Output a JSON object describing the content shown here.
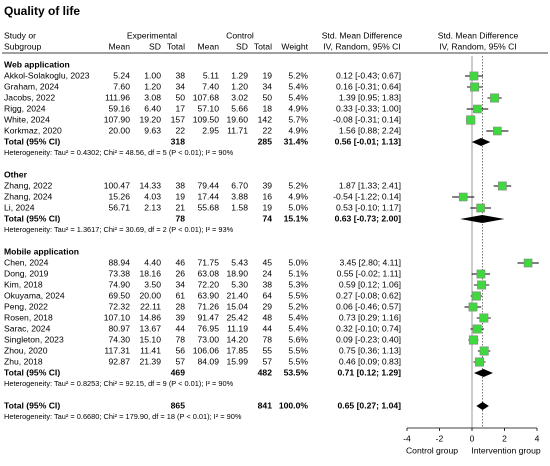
{
  "chart_data": {
    "type": "forest",
    "title": "Quality of life",
    "header": {
      "study": [
        "Study or",
        "Subgroup"
      ],
      "experimental": "Experimental",
      "control": "Control",
      "columns": [
        "Mean",
        "SD",
        "Total",
        "Mean",
        "SD",
        "Total"
      ],
      "weight": "Weight",
      "smd": [
        "Std. Mean Difference",
        "IV, Random, 95% CI"
      ],
      "plot": [
        "Std. Mean Difference",
        "IV, Random, 95% CI"
      ]
    },
    "marker_color": "#3fd83f",
    "groups": [
      {
        "name": "Web application",
        "studies": [
          {
            "name": "Akkol-Solakoglu, 2023",
            "experimental": [
              "5.24",
              "1.00",
              "38"
            ],
            "control": [
              "5.11",
              "1.29",
              "19"
            ],
            "weight": 5.2,
            "weight_label": "5.2%",
            "smd": 0.12,
            "lower": -0.43,
            "upper": 0.67,
            "ci_label": "0.12 [-0.43; 0.67]"
          },
          {
            "name": "Graham, 2024",
            "experimental": [
              "7.60",
              "1.20",
              "34"
            ],
            "control": [
              "7.40",
              "1.20",
              "34"
            ],
            "weight": 5.4,
            "weight_label": "5.4%",
            "smd": 0.16,
            "lower": -0.31,
            "upper": 0.64,
            "ci_label": "0.16 [-0.31; 0.64]"
          },
          {
            "name": "Jacobs, 2022",
            "experimental": [
              "111.96",
              "3.08",
              "50"
            ],
            "control": [
              "107.68",
              "3.02",
              "50"
            ],
            "weight": 5.4,
            "weight_label": "5.4%",
            "smd": 1.39,
            "lower": 0.95,
            "upper": 1.83,
            "ci_label": "1.39 [0.95; 1.83]"
          },
          {
            "name": "Rigg, 2024",
            "experimental": [
              "59.16",
              "6.40",
              "17"
            ],
            "control": [
              "57.10",
              "5.66",
              "18"
            ],
            "weight": 4.9,
            "weight_label": "4.9%",
            "smd": 0.33,
            "lower": -0.33,
            "upper": 1.0,
            "ci_label": "0.33 [-0.33; 1.00]"
          },
          {
            "name": "White, 2024",
            "experimental": [
              "107.90",
              "19.20",
              "157"
            ],
            "control": [
              "109.50",
              "19.60",
              "142"
            ],
            "weight": 5.7,
            "weight_label": "5.7%",
            "smd": -0.08,
            "lower": -0.31,
            "upper": 0.14,
            "ci_label": "-0.08 [-0.31; 0.14]"
          },
          {
            "name": "Korkmaz, 2020",
            "experimental": [
              "20.00",
              "9.63",
              "22"
            ],
            "control": [
              "2.95",
              "11.71",
              "22"
            ],
            "weight": 4.9,
            "weight_label": "4.9%",
            "smd": 1.56,
            "lower": 0.88,
            "upper": 2.24,
            "ci_label": "1.56 [0.88; 2.24]"
          }
        ],
        "total": {
          "label": "Total (95% CI)",
          "experimental": "318",
          "control": "285",
          "weight_label": "31.4%",
          "smd": 0.56,
          "lower": -0.01,
          "upper": 1.13,
          "ci_label": "0.56 [-0.01; 1.13]"
        },
        "heterogeneity": "Heterogeneity: Tau² = 0.4302; Chi² = 48.56, df = 5 (P < 0.01); I² = 90%"
      },
      {
        "name": "Other",
        "studies": [
          {
            "name": "Zhang, 2022",
            "experimental": [
              "100.47",
              "14.33",
              "38"
            ],
            "control": [
              "79.44",
              "6.70",
              "39"
            ],
            "weight": 5.2,
            "weight_label": "5.2%",
            "smd": 1.87,
            "lower": 1.33,
            "upper": 2.41,
            "ci_label": "1.87 [1.33; 2.41]"
          },
          {
            "name": "Zhang, 2024",
            "experimental": [
              "15.26",
              "4.03",
              "19"
            ],
            "control": [
              "17.44",
              "3.88",
              "16"
            ],
            "weight": 4.9,
            "weight_label": "4.9%",
            "smd": -0.54,
            "lower": -1.22,
            "upper": 0.14,
            "ci_label": "-0.54 [-1.22; 0.14]"
          },
          {
            "name": "Li, 2024",
            "experimental": [
              "56.71",
              "2.13",
              "21"
            ],
            "control": [
              "55.68",
              "1.58",
              "19"
            ],
            "weight": 5.0,
            "weight_label": "5.0%",
            "smd": 0.53,
            "lower": -0.1,
            "upper": 1.17,
            "ci_label": "0.53 [-0.10; 1.17]"
          }
        ],
        "total": {
          "label": "Total (95% CI)",
          "experimental": "78",
          "control": "74",
          "weight_label": "15.1%",
          "smd": 0.63,
          "lower": -0.73,
          "upper": 2.0,
          "ci_label": "0.63 [-0.73; 2.00]"
        },
        "heterogeneity": "Heterogeneity: Tau² = 1.3617; Chi² = 30.69, df = 2 (P < 0.01); I² = 93%"
      },
      {
        "name": "Mobile application",
        "studies": [
          {
            "name": "Chen, 2024",
            "experimental": [
              "88.94",
              "4.40",
              "46"
            ],
            "control": [
              "71.75",
              "5.43",
              "45"
            ],
            "weight": 5.0,
            "weight_label": "5.0%",
            "smd": 3.45,
            "lower": 2.8,
            "upper": 4.11,
            "ci_label": "3.45 [2.80; 4.11]"
          },
          {
            "name": "Dong, 2019",
            "experimental": [
              "73.38",
              "18.16",
              "26"
            ],
            "control": [
              "63.08",
              "18.90",
              "24"
            ],
            "weight": 5.1,
            "weight_label": "5.1%",
            "smd": 0.55,
            "lower": -0.02,
            "upper": 1.11,
            "ci_label": "0.55 [-0.02; 1.11]"
          },
          {
            "name": "Kim, 2018",
            "experimental": [
              "74.90",
              "3.50",
              "34"
            ],
            "control": [
              "72.20",
              "5.30",
              "38"
            ],
            "weight": 5.3,
            "weight_label": "5.3%",
            "smd": 0.59,
            "lower": 0.12,
            "upper": 1.06,
            "ci_label": "0.59 [0.12; 1.06]"
          },
          {
            "name": "Okuyama, 2024",
            "experimental": [
              "69.50",
              "20.00",
              "61"
            ],
            "control": [
              "63.90",
              "21.40",
              "64"
            ],
            "weight": 5.5,
            "weight_label": "5.5%",
            "smd": 0.27,
            "lower": -0.08,
            "upper": 0.62,
            "ci_label": "0.27 [-0.08; 0.62]"
          },
          {
            "name": "Peng, 2022",
            "experimental": [
              "72.32",
              "22.11",
              "28"
            ],
            "control": [
              "71.26",
              "15.04",
              "29"
            ],
            "weight": 5.2,
            "weight_label": "5.2%",
            "smd": 0.06,
            "lower": -0.46,
            "upper": 0.57,
            "ci_label": "0.06 [-0.46; 0.57]"
          },
          {
            "name": "Rosen, 2018",
            "experimental": [
              "107.10",
              "14.86",
              "39"
            ],
            "control": [
              "91.47",
              "25.42",
              "48"
            ],
            "weight": 5.4,
            "weight_label": "5.4%",
            "smd": 0.73,
            "lower": 0.29,
            "upper": 1.16,
            "ci_label": "0.73 [0.29; 1.16]"
          },
          {
            "name": "Sarac, 2024",
            "experimental": [
              "80.97",
              "13.67",
              "44"
            ],
            "control": [
              "76.95",
              "11.19",
              "44"
            ],
            "weight": 5.4,
            "weight_label": "5.4%",
            "smd": 0.32,
            "lower": -0.1,
            "upper": 0.74,
            "ci_label": "0.32 [-0.10; 0.74]"
          },
          {
            "name": "Singleton, 2023",
            "experimental": [
              "74.30",
              "15.10",
              "78"
            ],
            "control": [
              "73.00",
              "14.20",
              "78"
            ],
            "weight": 5.6,
            "weight_label": "5.6%",
            "smd": 0.09,
            "lower": -0.23,
            "upper": 0.4,
            "ci_label": "0.09 [-0.23; 0.40]"
          },
          {
            "name": "Zhou, 2020",
            "experimental": [
              "117.31",
              "11.41",
              "56"
            ],
            "control": [
              "106.06",
              "17.85",
              "55"
            ],
            "weight": 5.5,
            "weight_label": "5.5%",
            "smd": 0.75,
            "lower": 0.36,
            "upper": 1.13,
            "ci_label": "0.75 [0.36; 1.13]"
          },
          {
            "name": "Zhu, 2018",
            "experimental": [
              "92.87",
              "21.39",
              "57"
            ],
            "control": [
              "84.09",
              "15.99",
              "57"
            ],
            "weight": 5.5,
            "weight_label": "5.5%",
            "smd": 0.46,
            "lower": 0.09,
            "upper": 0.83,
            "ci_label": "0.46 [0.09; 0.83]"
          }
        ],
        "total": {
          "label": "Total (95% CI)",
          "experimental": "469",
          "control": "482",
          "weight_label": "53.5%",
          "smd": 0.71,
          "lower": 0.12,
          "upper": 1.29,
          "ci_label": "0.71 [0.12; 1.29]"
        },
        "heterogeneity": "Heterogeneity: Tau² = 0.8253; Chi² = 92.15, df = 9 (P < 0.01); I² = 90%"
      }
    ],
    "overall": {
      "label": "Total (95% CI)",
      "experimental": "865",
      "control": "841",
      "weight_label": "100.0%",
      "smd": 0.65,
      "lower": 0.27,
      "upper": 1.04,
      "ci_label": "0.65 [0.27; 1.04]",
      "heterogeneity": "Heterogeneity: Tau² = 0.6680; Chi² = 179.90, df = 18 (P < 0.01); I² = 90%"
    },
    "xlim": [
      -4,
      4
    ],
    "xticks": [
      -4,
      -2,
      0,
      2,
      4
    ],
    "xlabels": [
      "Control group",
      "Intervention group"
    ]
  }
}
